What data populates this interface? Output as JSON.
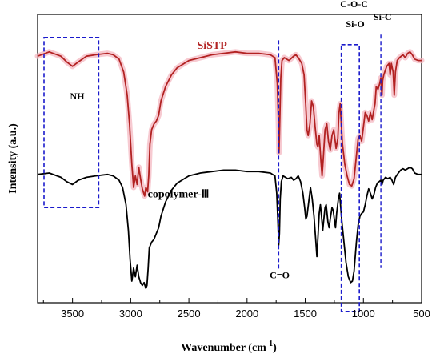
{
  "chart_data": {
    "type": "line",
    "xlabel": "Wavenumber (cm",
    "xlabel_sup": "-1",
    "xlabel_close": ")",
    "ylabel": "Intensity (a.u.)",
    "xlim": [
      3800,
      500
    ],
    "x_reversed": true,
    "ylim": [
      0,
      100
    ],
    "grid": false,
    "y_ticks_labels": false,
    "x_ticks": [
      3500,
      3000,
      2500,
      2000,
      1500,
      1000,
      500
    ],
    "x_tick_labels": [
      "3500",
      "3000",
      "2500",
      "2000",
      "1500",
      "1000",
      "500"
    ],
    "series": [
      {
        "name": "SiSTP",
        "color": "#b22222",
        "halo_color": "#f4b8c2",
        "points": [
          [
            3800,
            85.5
          ],
          [
            3700,
            87.0
          ],
          [
            3600,
            85.5
          ],
          [
            3550,
            83.5
          ],
          [
            3500,
            82.0
          ],
          [
            3450,
            83.5
          ],
          [
            3380,
            85.5
          ],
          [
            3300,
            86.0
          ],
          [
            3200,
            86.5
          ],
          [
            3150,
            86.0
          ],
          [
            3100,
            84.5
          ],
          [
            3060,
            80.0
          ],
          [
            3030,
            72.0
          ],
          [
            3010,
            62.0
          ],
          [
            2990,
            48.0
          ],
          [
            2975,
            40.0
          ],
          [
            2960,
            44.0
          ],
          [
            2945,
            41.0
          ],
          [
            2930,
            47.0
          ],
          [
            2915,
            43.0
          ],
          [
            2900,
            39.5
          ],
          [
            2880,
            37.0
          ],
          [
            2870,
            40.0
          ],
          [
            2855,
            38.5
          ],
          [
            2845,
            44.0
          ],
          [
            2835,
            55.0
          ],
          [
            2820,
            60.0
          ],
          [
            2800,
            62.0
          ],
          [
            2780,
            63.0
          ],
          [
            2760,
            65.0
          ],
          [
            2740,
            70.0
          ],
          [
            2700,
            75.0
          ],
          [
            2650,
            79.0
          ],
          [
            2600,
            81.5
          ],
          [
            2500,
            84.0
          ],
          [
            2400,
            85.0
          ],
          [
            2300,
            86.0
          ],
          [
            2200,
            86.5
          ],
          [
            2100,
            87.0
          ],
          [
            2000,
            86.5
          ],
          [
            1900,
            86.5
          ],
          [
            1800,
            86.0
          ],
          [
            1760,
            85.0
          ],
          [
            1740,
            76.0
          ],
          [
            1730,
            62.0
          ],
          [
            1725,
            52.0
          ],
          [
            1720,
            60.0
          ],
          [
            1710,
            78.0
          ],
          [
            1700,
            84.0
          ],
          [
            1680,
            85.0
          ],
          [
            1640,
            84.0
          ],
          [
            1600,
            85.5
          ],
          [
            1580,
            86.0
          ],
          [
            1560,
            85.0
          ],
          [
            1530,
            83.0
          ],
          [
            1510,
            79.0
          ],
          [
            1495,
            68.0
          ],
          [
            1485,
            60.0
          ],
          [
            1475,
            58.0
          ],
          [
            1460,
            62.0
          ],
          [
            1445,
            70.0
          ],
          [
            1430,
            68.0
          ],
          [
            1415,
            61.0
          ],
          [
            1400,
            55.0
          ],
          [
            1390,
            54.0
          ],
          [
            1380,
            58.0
          ],
          [
            1365,
            49.0
          ],
          [
            1355,
            44.0
          ],
          [
            1345,
            50.0
          ],
          [
            1330,
            60.0
          ],
          [
            1315,
            62.0
          ],
          [
            1300,
            56.0
          ],
          [
            1285,
            53.0
          ],
          [
            1270,
            58.0
          ],
          [
            1255,
            60.0
          ],
          [
            1245,
            57.0
          ],
          [
            1235,
            53.5
          ],
          [
            1220,
            57.0
          ],
          [
            1210,
            66.0
          ],
          [
            1200,
            69.0
          ],
          [
            1190,
            62.0
          ],
          [
            1180,
            55.0
          ],
          [
            1160,
            48.0
          ],
          [
            1140,
            44.0
          ],
          [
            1120,
            41.0
          ],
          [
            1100,
            40.5
          ],
          [
            1080,
            43.0
          ],
          [
            1060,
            51.0
          ],
          [
            1045,
            57.0
          ],
          [
            1030,
            58.0
          ],
          [
            1015,
            56.0
          ],
          [
            1000,
            61.0
          ],
          [
            985,
            66.0
          ],
          [
            970,
            65.0
          ],
          [
            955,
            63.0
          ],
          [
            940,
            66.0
          ],
          [
            925,
            63.5
          ],
          [
            910,
            67.0
          ],
          [
            900,
            69.0
          ],
          [
            890,
            75.0
          ],
          [
            875,
            74.0
          ],
          [
            860,
            76.0
          ],
          [
            850,
            78.0
          ],
          [
            845,
            74.0
          ],
          [
            840,
            72.0
          ],
          [
            835,
            77.0
          ],
          [
            825,
            79.0
          ],
          [
            800,
            82.0
          ],
          [
            780,
            83.0
          ],
          [
            770,
            79.0
          ],
          [
            760,
            83.0
          ],
          [
            745,
            80.0
          ],
          [
            735,
            72.0
          ],
          [
            725,
            80.0
          ],
          [
            710,
            84.0
          ],
          [
            690,
            85.0
          ],
          [
            660,
            86.0
          ],
          [
            640,
            85.0
          ],
          [
            620,
            86.5
          ],
          [
            600,
            87.0
          ],
          [
            580,
            86.0
          ],
          [
            560,
            84.5
          ],
          [
            530,
            84.0
          ],
          [
            500,
            84.0
          ]
        ]
      },
      {
        "name": "copolymer-Ⅲ",
        "color": "#000000",
        "points": [
          [
            3800,
            44.5
          ],
          [
            3700,
            45.0
          ],
          [
            3600,
            43.5
          ],
          [
            3550,
            42.0
          ],
          [
            3500,
            41.0
          ],
          [
            3450,
            42.5
          ],
          [
            3380,
            43.5
          ],
          [
            3300,
            44.0
          ],
          [
            3200,
            44.5
          ],
          [
            3150,
            44.0
          ],
          [
            3100,
            42.5
          ],
          [
            3070,
            40.0
          ],
          [
            3040,
            34.0
          ],
          [
            3020,
            25.0
          ],
          [
            3005,
            15.0
          ],
          [
            2990,
            7.5
          ],
          [
            2975,
            12.0
          ],
          [
            2960,
            9.0
          ],
          [
            2945,
            13.0
          ],
          [
            2930,
            9.0
          ],
          [
            2915,
            7.0
          ],
          [
            2900,
            6.0
          ],
          [
            2885,
            7.0
          ],
          [
            2870,
            5.0
          ],
          [
            2860,
            6.0
          ],
          [
            2850,
            12.0
          ],
          [
            2840,
            19.0
          ],
          [
            2820,
            21.0
          ],
          [
            2800,
            22.0
          ],
          [
            2780,
            24.0
          ],
          [
            2760,
            26.0
          ],
          [
            2740,
            30.0
          ],
          [
            2700,
            35.0
          ],
          [
            2650,
            39.0
          ],
          [
            2600,
            41.5
          ],
          [
            2500,
            44.0
          ],
          [
            2400,
            45.0
          ],
          [
            2300,
            45.5
          ],
          [
            2200,
            46.0
          ],
          [
            2100,
            46.0
          ],
          [
            2000,
            45.5
          ],
          [
            1900,
            45.5
          ],
          [
            1800,
            45.0
          ],
          [
            1760,
            44.0
          ],
          [
            1745,
            38.0
          ],
          [
            1735,
            28.0
          ],
          [
            1728,
            20.0
          ],
          [
            1722,
            24.0
          ],
          [
            1715,
            36.0
          ],
          [
            1705,
            42.0
          ],
          [
            1690,
            44.0
          ],
          [
            1650,
            43.0
          ],
          [
            1620,
            43.5
          ],
          [
            1600,
            42.5
          ],
          [
            1580,
            43.0
          ],
          [
            1560,
            44.0
          ],
          [
            1540,
            42.0
          ],
          [
            1520,
            38.0
          ],
          [
            1505,
            33.0
          ],
          [
            1495,
            29.0
          ],
          [
            1485,
            30.0
          ],
          [
            1470,
            35.0
          ],
          [
            1455,
            40.0
          ],
          [
            1440,
            36.0
          ],
          [
            1425,
            30.0
          ],
          [
            1410,
            22.0
          ],
          [
            1400,
            16.0
          ],
          [
            1390,
            23.0
          ],
          [
            1380,
            31.0
          ],
          [
            1370,
            34.0
          ],
          [
            1360,
            30.0
          ],
          [
            1350,
            25.0
          ],
          [
            1340,
            29.0
          ],
          [
            1330,
            33.0
          ],
          [
            1320,
            34.0
          ],
          [
            1305,
            28.0
          ],
          [
            1295,
            26.0
          ],
          [
            1285,
            29.0
          ],
          [
            1270,
            33.0
          ],
          [
            1260,
            32.0
          ],
          [
            1250,
            29.0
          ],
          [
            1240,
            26.0
          ],
          [
            1230,
            31.0
          ],
          [
            1215,
            36.0
          ],
          [
            1205,
            38.0
          ],
          [
            1195,
            33.0
          ],
          [
            1185,
            28.0
          ],
          [
            1165,
            20.0
          ],
          [
            1150,
            14.0
          ],
          [
            1130,
            9.0
          ],
          [
            1110,
            7.0
          ],
          [
            1095,
            7.5
          ],
          [
            1080,
            11.0
          ],
          [
            1060,
            21.0
          ],
          [
            1045,
            27.0
          ],
          [
            1030,
            30.0
          ],
          [
            1015,
            31.0
          ],
          [
            1000,
            31.5
          ],
          [
            985,
            34.0
          ],
          [
            970,
            37.0
          ],
          [
            955,
            39.5
          ],
          [
            940,
            38.0
          ],
          [
            925,
            36.0
          ],
          [
            910,
            37.5
          ],
          [
            895,
            40.0
          ],
          [
            880,
            41.5
          ],
          [
            865,
            42.0
          ],
          [
            850,
            42.5
          ],
          [
            840,
            41.0
          ],
          [
            830,
            42.5
          ],
          [
            810,
            43.5
          ],
          [
            790,
            43.0
          ],
          [
            770,
            43.5
          ],
          [
            755,
            42.5
          ],
          [
            740,
            41.0
          ],
          [
            725,
            43.5
          ],
          [
            700,
            45.0
          ],
          [
            680,
            46.0
          ],
          [
            660,
            46.5
          ],
          [
            640,
            46.0
          ],
          [
            620,
            46.5
          ],
          [
            600,
            47.0
          ],
          [
            580,
            46.5
          ],
          [
            560,
            45.0
          ],
          [
            530,
            44.5
          ],
          [
            500,
            44.5
          ]
        ]
      }
    ],
    "series_labels": [
      {
        "text": "SiSTP",
        "color": "#b22222",
        "at": [
          2300,
          88.0
        ]
      },
      {
        "text": "copolymer-Ⅲ",
        "color": "#000000",
        "at": [
          2590,
          36.5
        ]
      }
    ],
    "annotations": [
      {
        "text": "NH",
        "at": [
          3460,
          70.5
        ]
      },
      {
        "text": "C=O",
        "at": [
          1720,
          8.5
        ]
      },
      {
        "text": "C-O-C",
        "at": [
          1080,
          102.5
        ]
      },
      {
        "text": "Si-O",
        "at": [
          1070,
          95.5
        ]
      },
      {
        "text": "Si-C",
        "at": [
          835,
          98.0
        ]
      }
    ],
    "boxes": [
      {
        "x": [
          3745,
          3275
        ],
        "y": [
          92.0,
          33.0
        ]
      },
      {
        "x": [
          1190,
          1035
        ],
        "y": [
          89.5,
          -3.0
        ]
      }
    ],
    "vlines": [
      {
        "x": 1728,
        "y": [
          91.0,
          11.5
        ]
      },
      {
        "x": 850,
        "y": [
          93.0,
          12.0
        ]
      }
    ],
    "highlight_color": "#1a1acc"
  }
}
